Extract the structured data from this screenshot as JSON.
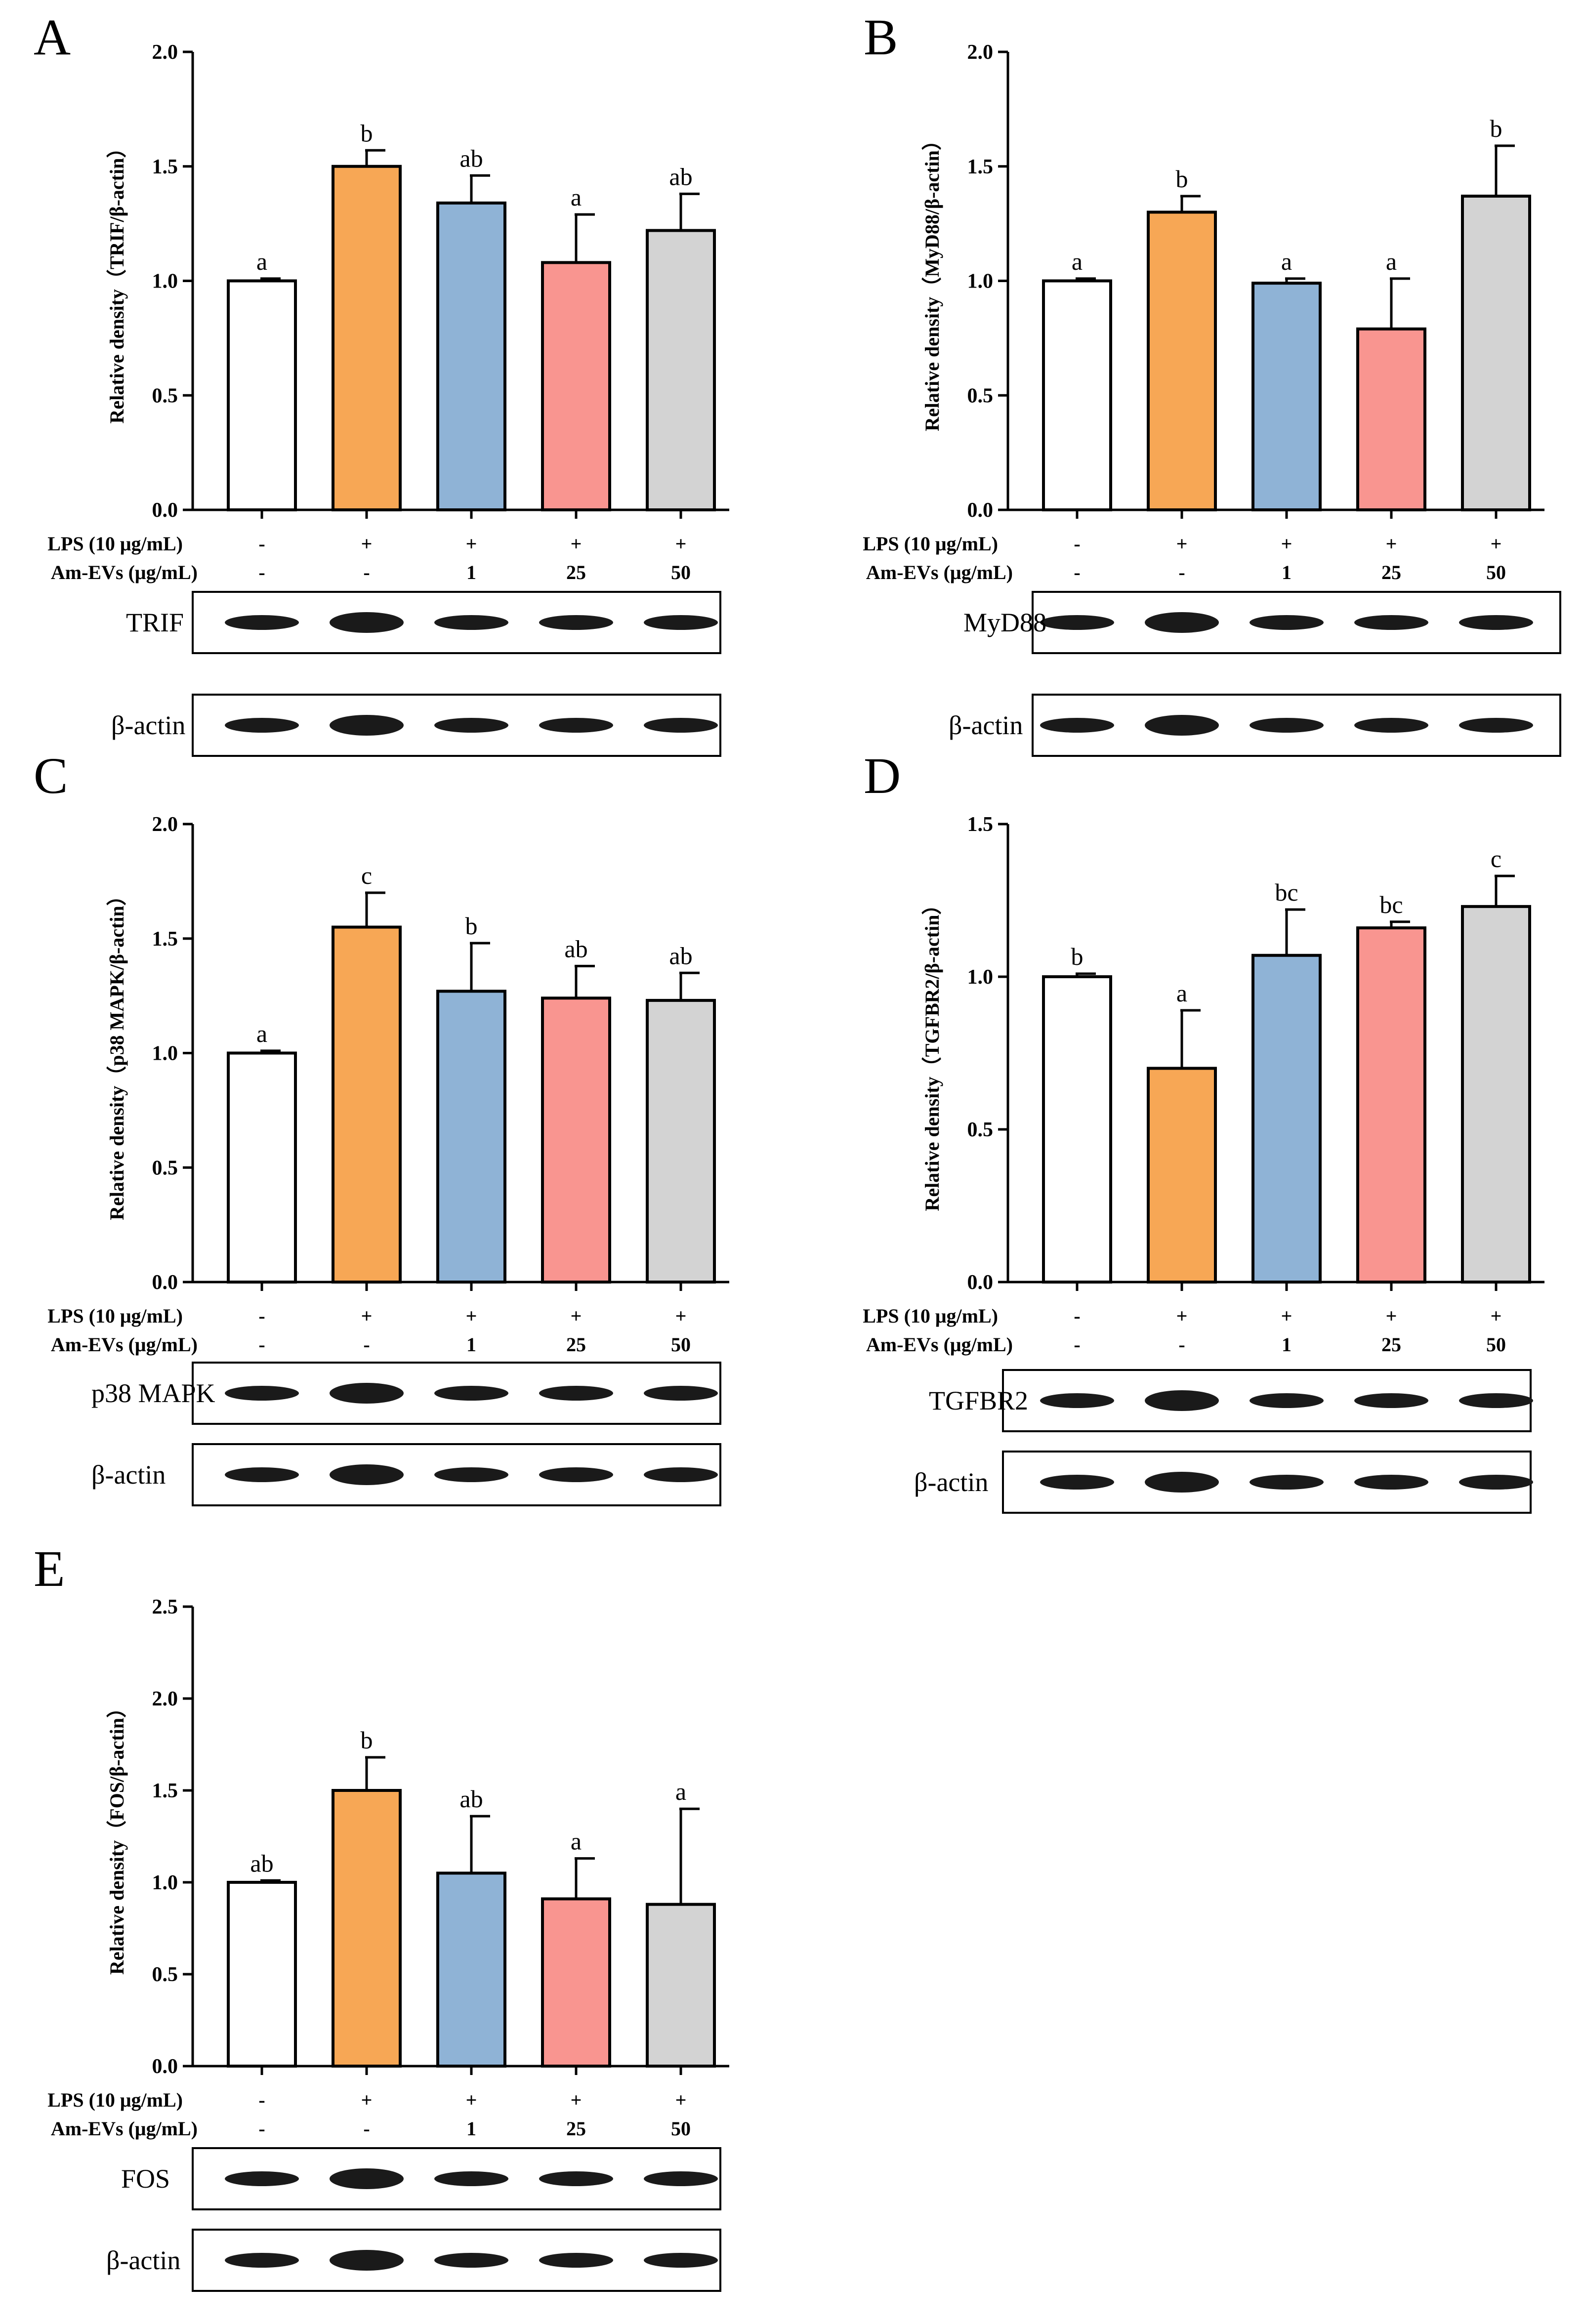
{
  "row_labels": {
    "lps": "LPS (10 μg/mL)",
    "amevs": "Am-EVs (μg/mL)"
  },
  "colors": {
    "fills": [
      "#ffffff",
      "#f7a755",
      "#8fb3d6",
      "#f99590",
      "#d3d3d3"
    ],
    "stroke": "#000000"
  },
  "chart_data": [
    {
      "type": "bar",
      "panel_letter": "A",
      "ylabel": "Relative density（TRIF/β-actin）",
      "ylim": [
        0,
        2.0
      ],
      "yticks": [
        "0.0",
        "0.5",
        "1.0",
        "1.5",
        "2.0"
      ],
      "values": [
        1.0,
        1.5,
        1.34,
        1.08,
        1.22
      ],
      "errors": [
        0.01,
        0.07,
        0.12,
        0.21,
        0.16
      ],
      "letters": [
        "a",
        "b",
        "ab",
        "a",
        "ab"
      ],
      "lps": [
        "-",
        "+",
        "+",
        "+",
        "+"
      ],
      "amevs": [
        "-",
        "-",
        "1",
        "25",
        "50"
      ],
      "blots": [
        "TRIF",
        "β-actin"
      ]
    },
    {
      "type": "bar",
      "panel_letter": "B",
      "ylabel": "Relative density（MyD88/β-actin）",
      "ylim": [
        0,
        2.0
      ],
      "yticks": [
        "0.0",
        "0.5",
        "1.0",
        "1.5",
        "2.0"
      ],
      "values": [
        1.0,
        1.3,
        0.99,
        0.79,
        1.37
      ],
      "errors": [
        0.01,
        0.07,
        0.02,
        0.22,
        0.22
      ],
      "letters": [
        "a",
        "b",
        "a",
        "a",
        "b"
      ],
      "lps": [
        "-",
        "+",
        "+",
        "+",
        "+"
      ],
      "amevs": [
        "-",
        "-",
        "1",
        "25",
        "50"
      ],
      "blots": [
        "MyD88",
        "β-actin"
      ]
    },
    {
      "type": "bar",
      "panel_letter": "C",
      "ylabel": "Relative density（p38 MAPK/β-actin）",
      "ylim": [
        0,
        2.0
      ],
      "yticks": [
        "0.0",
        "0.5",
        "1.0",
        "1.5",
        "2.0"
      ],
      "values": [
        1.0,
        1.55,
        1.27,
        1.24,
        1.23
      ],
      "errors": [
        0.01,
        0.15,
        0.21,
        0.14,
        0.12
      ],
      "letters": [
        "a",
        "c",
        "b",
        "ab",
        "ab"
      ],
      "lps": [
        "-",
        "+",
        "+",
        "+",
        "+"
      ],
      "amevs": [
        "-",
        "-",
        "1",
        "25",
        "50"
      ],
      "blots": [
        "p38 MAPK",
        "β-actin"
      ]
    },
    {
      "type": "bar",
      "panel_letter": "D",
      "ylabel": "Relative density（TGFBR2/β-actin）",
      "ylim": [
        0,
        1.5
      ],
      "yticks": [
        "0.0",
        "0.5",
        "1.0",
        "1.5"
      ],
      "values": [
        1.0,
        0.7,
        1.07,
        1.16,
        1.23
      ],
      "errors": [
        0.01,
        0.19,
        0.15,
        0.02,
        0.1
      ],
      "letters": [
        "b",
        "a",
        "bc",
        "bc",
        "c"
      ],
      "lps": [
        "-",
        "+",
        "+",
        "+",
        "+"
      ],
      "amevs": [
        "-",
        "-",
        "1",
        "25",
        "50"
      ],
      "blots": [
        "TGFBR2",
        "β-actin"
      ]
    },
    {
      "type": "bar",
      "panel_letter": "E",
      "ylabel": "Relative density（FOS/β-actin）",
      "ylim": [
        0,
        2.5
      ],
      "yticks": [
        "0.0",
        "0.5",
        "1.0",
        "1.5",
        "2.0",
        "2.5"
      ],
      "values": [
        1.0,
        1.5,
        1.05,
        0.91,
        0.88
      ],
      "errors": [
        0.01,
        0.18,
        0.31,
        0.22,
        0.52
      ],
      "letters": [
        "ab",
        "b",
        "ab",
        "a",
        "a"
      ],
      "lps": [
        "-",
        "+",
        "+",
        "+",
        "+"
      ],
      "amevs": [
        "-",
        "-",
        "1",
        "25",
        "50"
      ],
      "blots": [
        "FOS",
        "β-actin"
      ]
    }
  ]
}
